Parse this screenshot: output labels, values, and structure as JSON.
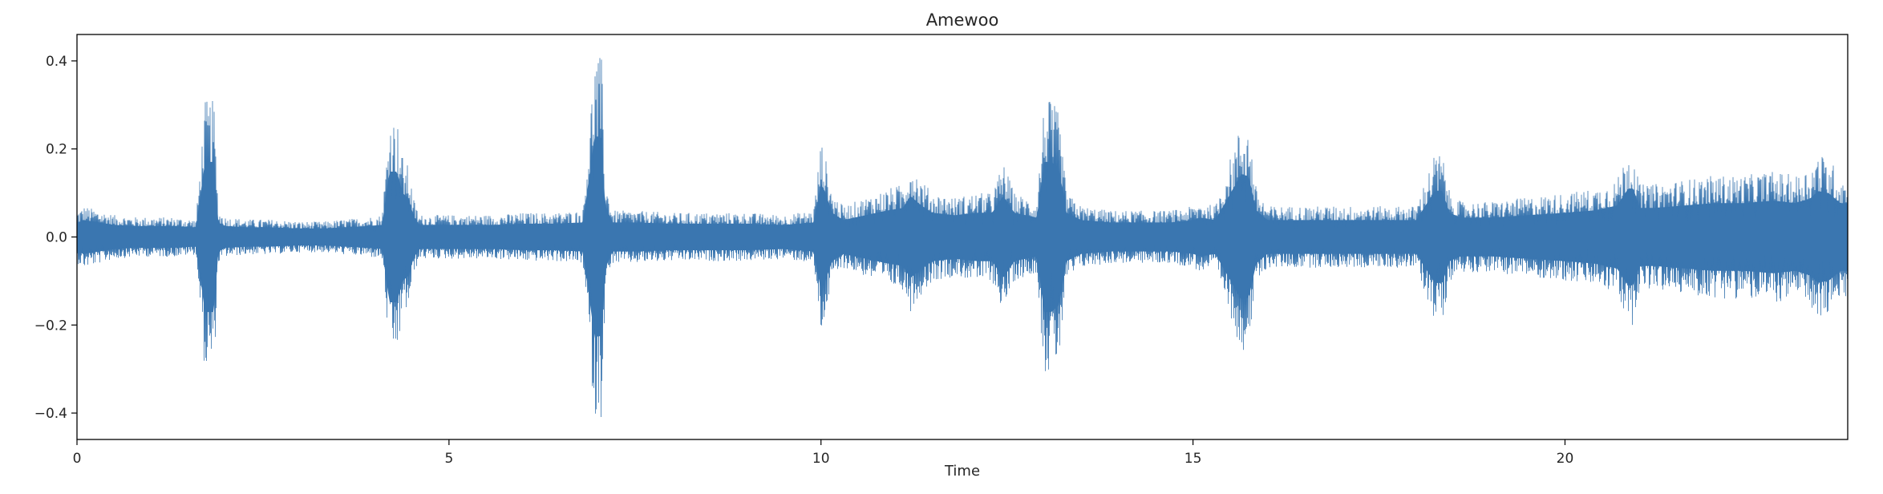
{
  "chart_data": {
    "type": "line",
    "title": "Amewoo",
    "xlabel": "Time",
    "ylabel": "",
    "xlim": [
      0,
      23.8
    ],
    "ylim": [
      -0.46,
      0.46
    ],
    "xticks": [
      0,
      5,
      10,
      15,
      20
    ],
    "xtick_labels": [
      "0",
      "5",
      "10",
      "15",
      "20"
    ],
    "yticks": [
      0.4,
      0.2,
      0.0,
      -0.2,
      -0.4
    ],
    "ytick_labels": [
      "0.4",
      "0.2",
      "0.0",
      "−0.2",
      "−0.4"
    ],
    "grid": false,
    "legend": "none",
    "series": [
      {
        "color": "#3a76b0",
        "x": [
          0,
          0.1,
          0.3,
          0.5,
          0.8,
          1.0,
          1.3,
          1.6,
          1.72,
          1.78,
          1.84,
          1.9,
          2.0,
          2.3,
          2.6,
          3.0,
          3.3,
          3.6,
          3.9,
          4.1,
          4.2,
          4.3,
          4.38,
          4.46,
          4.52,
          4.6,
          4.8,
          5.2,
          5.6,
          6.0,
          6.4,
          6.8,
          6.96,
          7.0,
          7.05,
          7.1,
          7.2,
          7.5,
          8.0,
          8.5,
          9.0,
          9.5,
          9.9,
          10.0,
          10.05,
          10.15,
          10.3,
          10.6,
          10.9,
          11.1,
          11.2,
          11.35,
          11.5,
          11.8,
          12.1,
          12.3,
          12.45,
          12.6,
          12.9,
          13.0,
          13.1,
          13.2,
          13.3,
          13.5,
          13.9,
          14.3,
          14.7,
          15.0,
          15.1,
          15.3,
          15.65,
          15.75,
          15.85,
          16.0,
          16.4,
          16.8,
          17.2,
          17.6,
          18.0,
          18.25,
          18.35,
          18.45,
          18.6,
          19.0,
          19.5,
          20.0,
          20.4,
          20.7,
          20.85,
          20.92,
          21.0,
          21.2,
          21.6,
          22.0,
          22.4,
          22.8,
          23.1,
          23.3,
          23.4,
          23.55,
          23.7,
          23.8
        ],
        "y_max": [
          0.06,
          0.07,
          0.06,
          0.05,
          0.045,
          0.045,
          0.045,
          0.04,
          0.31,
          0.31,
          0.31,
          0.06,
          0.045,
          0.04,
          0.04,
          0.035,
          0.035,
          0.04,
          0.045,
          0.05,
          0.27,
          0.27,
          0.18,
          0.16,
          0.09,
          0.05,
          0.05,
          0.05,
          0.05,
          0.055,
          0.055,
          0.06,
          0.42,
          0.41,
          0.41,
          0.13,
          0.06,
          0.06,
          0.055,
          0.055,
          0.055,
          0.05,
          0.06,
          0.22,
          0.19,
          0.1,
          0.07,
          0.09,
          0.11,
          0.12,
          0.17,
          0.13,
          0.1,
          0.09,
          0.1,
          0.1,
          0.17,
          0.1,
          0.08,
          0.31,
          0.31,
          0.28,
          0.1,
          0.07,
          0.06,
          0.06,
          0.06,
          0.07,
          0.08,
          0.07,
          0.26,
          0.25,
          0.11,
          0.07,
          0.07,
          0.07,
          0.07,
          0.07,
          0.07,
          0.19,
          0.19,
          0.1,
          0.08,
          0.08,
          0.09,
          0.1,
          0.11,
          0.13,
          0.2,
          0.2,
          0.12,
          0.12,
          0.13,
          0.14,
          0.14,
          0.15,
          0.14,
          0.16,
          0.19,
          0.18,
          0.14,
          0.14
        ],
        "y_min": [
          -0.06,
          -0.07,
          -0.06,
          -0.05,
          -0.045,
          -0.045,
          -0.045,
          -0.04,
          -0.31,
          -0.31,
          -0.31,
          -0.06,
          -0.045,
          -0.04,
          -0.04,
          -0.035,
          -0.035,
          -0.04,
          -0.045,
          -0.05,
          -0.27,
          -0.27,
          -0.18,
          -0.16,
          -0.09,
          -0.05,
          -0.05,
          -0.05,
          -0.05,
          -0.055,
          -0.055,
          -0.06,
          -0.42,
          -0.41,
          -0.41,
          -0.13,
          -0.06,
          -0.06,
          -0.055,
          -0.055,
          -0.055,
          -0.05,
          -0.06,
          -0.22,
          -0.19,
          -0.1,
          -0.07,
          -0.09,
          -0.11,
          -0.12,
          -0.17,
          -0.13,
          -0.1,
          -0.09,
          -0.1,
          -0.1,
          -0.17,
          -0.1,
          -0.08,
          -0.31,
          -0.31,
          -0.28,
          -0.1,
          -0.07,
          -0.06,
          -0.06,
          -0.06,
          -0.07,
          -0.08,
          -0.07,
          -0.26,
          -0.25,
          -0.11,
          -0.07,
          -0.07,
          -0.07,
          -0.07,
          -0.07,
          -0.07,
          -0.19,
          -0.19,
          -0.1,
          -0.08,
          -0.08,
          -0.09,
          -0.1,
          -0.11,
          -0.13,
          -0.2,
          -0.2,
          -0.12,
          -0.12,
          -0.13,
          -0.14,
          -0.14,
          -0.15,
          -0.14,
          -0.16,
          -0.19,
          -0.18,
          -0.14,
          -0.14
        ]
      }
    ]
  }
}
